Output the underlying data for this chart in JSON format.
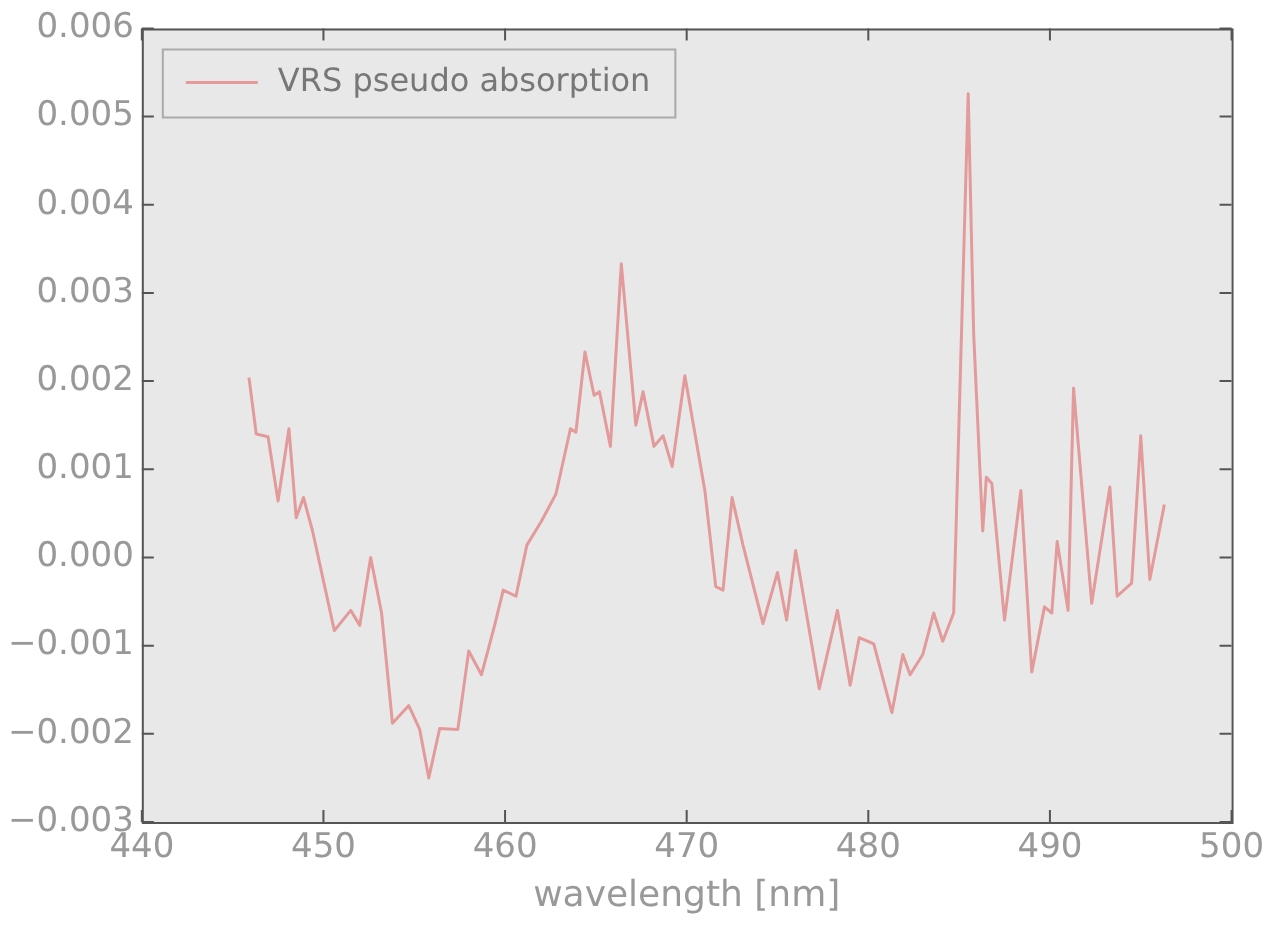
{
  "chart_data": {
    "type": "line",
    "xlabel": "wavelength [nm]",
    "legend": "top left",
    "grid": false,
    "xlim": [
      440,
      500
    ],
    "xticks": [
      440,
      450,
      460,
      470,
      480,
      490,
      500
    ],
    "ylim": [
      -0.003,
      0.006
    ],
    "yticks": [
      {
        "value": -0.003,
        "label": "−0.003"
      },
      {
        "value": -0.002,
        "label": "−0.002"
      },
      {
        "value": -0.001,
        "label": "−0.001"
      },
      {
        "value": 0,
        "label": "0.000"
      },
      {
        "value": 0.001,
        "label": "0.001"
      },
      {
        "value": 0.002,
        "label": "0.002"
      },
      {
        "value": 0.003,
        "label": "0.003"
      },
      {
        "value": 0.004,
        "label": "0.004"
      },
      {
        "value": 0.005,
        "label": "0.005"
      },
      {
        "value": 0.006,
        "label": "0.006"
      }
    ],
    "series": [
      {
        "name": "VRS pseudo absorption",
        "color": "#e39a9a",
        "x": [
          445.9,
          446.3,
          446.95,
          447.5,
          448.1,
          448.5,
          448.9,
          449.4,
          450.6,
          451.5,
          452.0,
          452.6,
          453.2,
          453.8,
          454.7,
          455.3,
          455.8,
          456.4,
          457.4,
          458.0,
          458.7,
          459.4,
          459.9,
          460.6,
          461.2,
          462.0,
          462.8,
          463.6,
          463.9,
          464.4,
          464.9,
          465.2,
          465.8,
          466.4,
          467.2,
          467.6,
          468.2,
          468.7,
          469.2,
          469.9,
          471.0,
          471.6,
          472.0,
          472.5,
          473.1,
          474.2,
          475.0,
          475.5,
          476.0,
          477.3,
          478.3,
          479.0,
          479.5,
          480.3,
          481.3,
          481.9,
          482.3,
          483.0,
          483.6,
          484.1,
          484.7,
          485.5,
          485.8,
          486.3,
          486.5,
          486.8,
          487.5,
          488.4,
          489.0,
          489.7,
          490.1,
          490.4,
          491.0,
          491.3,
          492.3,
          493.3,
          493.7,
          494.5,
          495.0,
          495.5,
          496.3
        ],
        "values": [
          0.00204,
          0.0014,
          0.00137,
          0.00064,
          0.00146,
          0.00045,
          0.00068,
          0.0003,
          -0.00083,
          -0.0006,
          -0.00077,
          0.0,
          -0.00063,
          -0.00188,
          -0.00168,
          -0.00195,
          -0.0025,
          -0.00194,
          -0.00195,
          -0.00106,
          -0.00133,
          -0.00079,
          -0.00037,
          -0.00044,
          0.00014,
          0.00041,
          0.00072,
          0.00146,
          0.00142,
          0.00233,
          0.00184,
          0.00188,
          0.00126,
          0.00333,
          0.0015,
          0.00188,
          0.00126,
          0.00138,
          0.00103,
          0.00206,
          0.00076,
          -0.00033,
          -0.00037,
          0.00068,
          0.00014,
          -0.00075,
          -0.00017,
          -0.00071,
          8e-05,
          -0.00149,
          -0.0006,
          -0.00145,
          -0.00091,
          -0.00098,
          -0.00176,
          -0.0011,
          -0.00133,
          -0.0011,
          -0.00063,
          -0.00095,
          -0.00063,
          0.00526,
          0.00254,
          0.0003,
          0.00091,
          0.00084,
          -0.00071,
          0.00076,
          -0.0013,
          -0.00056,
          -0.00063,
          0.00018,
          -0.0006,
          0.00192,
          -0.00052,
          0.0008,
          -0.00044,
          -0.00029,
          0.00138,
          -0.00025,
          0.0006
        ]
      }
    ]
  }
}
